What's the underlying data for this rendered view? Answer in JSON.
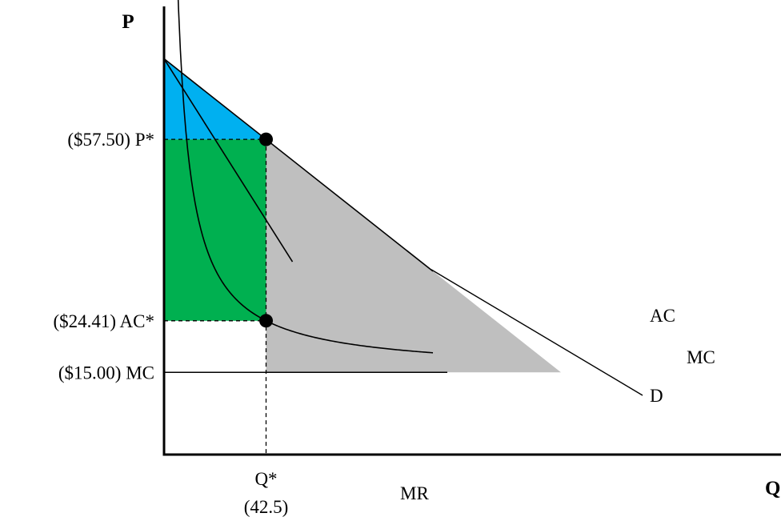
{
  "chart_data": {
    "type": "line",
    "title": "",
    "xlabel": "Q",
    "ylabel": "P",
    "xlim": [
      0,
      180
    ],
    "ylim": [
      0,
      75
    ],
    "grid": false,
    "legend": "none",
    "curves": [
      {
        "name": "D",
        "kind": "linear",
        "intercept": 72.2,
        "slope": -0.346,
        "x": [
          0,
          112
        ]
      },
      {
        "name": "MR",
        "kind": "linear",
        "intercept": 72.2,
        "slope": -0.692,
        "x": [
          0,
          53.5
        ]
      },
      {
        "name": "MC",
        "kind": "horizontal",
        "y": 15.0,
        "x": [
          0,
          118
        ]
      },
      {
        "name": "AC",
        "kind": "hyperbola",
        "fixed_cost": 400,
        "marginal_cost": 15.0,
        "x": [
          4.5,
          112
        ]
      }
    ],
    "points": [
      {
        "label": "P*",
        "x": 42.5,
        "y": 57.5
      },
      {
        "label": "AC*",
        "x": 42.5,
        "y": 24.41
      }
    ],
    "regions": [
      {
        "name": "consumer-surplus",
        "color": "#00b0f0"
      },
      {
        "name": "profit",
        "color": "#00b050"
      },
      {
        "name": "deadweight-area",
        "color": "#bfbfbf"
      }
    ],
    "y_ticks": [
      {
        "value": 57.5,
        "label": "($57.50) P*"
      },
      {
        "value": 24.41,
        "label": "($24.41) AC*"
      },
      {
        "value": 15.0,
        "label": "($15.00) MC"
      }
    ],
    "x_ticks": [
      {
        "value": 42.5,
        "label": "Q*",
        "sublabel": "(42.5)"
      }
    ],
    "curve_labels": {
      "AC": "AC",
      "MC": "MC",
      "D": "D",
      "MR": "MR"
    }
  }
}
